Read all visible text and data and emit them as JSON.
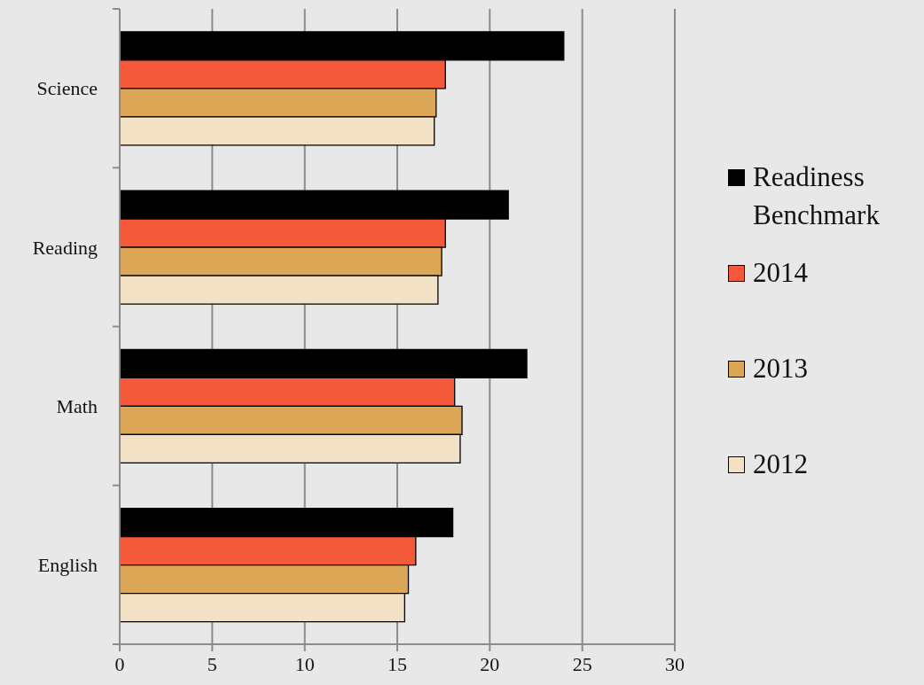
{
  "chart_data": {
    "type": "bar",
    "orientation": "horizontal",
    "categories": [
      "Science",
      "Reading",
      "Math",
      "English"
    ],
    "series": [
      {
        "name": "Readiness Benchmark",
        "color": "#000000",
        "values": [
          24,
          21,
          22,
          18
        ]
      },
      {
        "name": "2014",
        "color": "#f45a3a",
        "values": [
          17.6,
          17.6,
          18.1,
          16.0
        ]
      },
      {
        "name": "2013",
        "color": "#dba656",
        "values": [
          17.1,
          17.4,
          18.5,
          15.6
        ]
      },
      {
        "name": "2012",
        "color": "#f2e1c4",
        "values": [
          17.0,
          17.2,
          18.4,
          15.4
        ]
      }
    ],
    "xlim": [
      0,
      30
    ],
    "xticks": [
      0,
      5,
      10,
      15,
      20,
      25,
      30
    ],
    "grid": "x",
    "legend": "right"
  }
}
